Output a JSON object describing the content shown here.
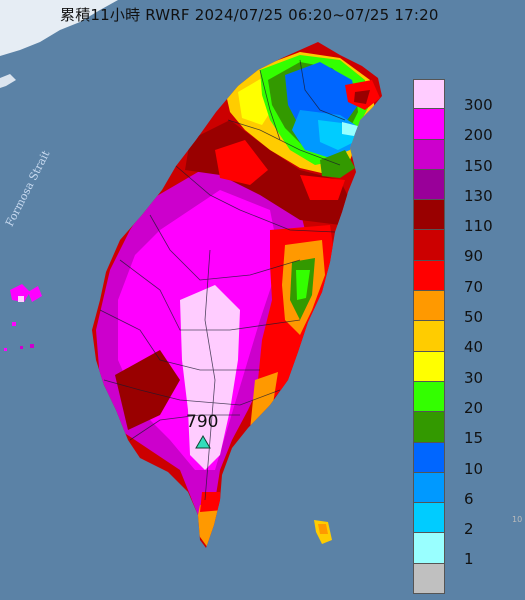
{
  "title": "累積11小時 RWRF 2024/07/25 06:20~07/25 17:20",
  "strait_label": "Formosa Strait",
  "peak_value": "790",
  "corner_mark": "10",
  "legend": [
    {
      "label": "300",
      "color": "#ffccff"
    },
    {
      "label": "200",
      "color": "#ff00ff"
    },
    {
      "label": "150",
      "color": "#cc00cc"
    },
    {
      "label": "130",
      "color": "#990099"
    },
    {
      "label": "110",
      "color": "#990000"
    },
    {
      "label": "90",
      "color": "#cc0000"
    },
    {
      "label": "70",
      "color": "#ff0000"
    },
    {
      "label": "50",
      "color": "#ff9900"
    },
    {
      "label": "40",
      "color": "#ffcc00"
    },
    {
      "label": "30",
      "color": "#ffff00"
    },
    {
      "label": "20",
      "color": "#33ff00"
    },
    {
      "label": "15",
      "color": "#339900"
    },
    {
      "label": "10",
      "color": "#0066ff"
    },
    {
      "label": "6",
      "color": "#0099ff"
    },
    {
      "label": "2",
      "color": "#00ccff"
    },
    {
      "label": "1",
      "color": "#99ffff"
    },
    {
      "label": "",
      "color": "#c0c0c0"
    }
  ]
}
